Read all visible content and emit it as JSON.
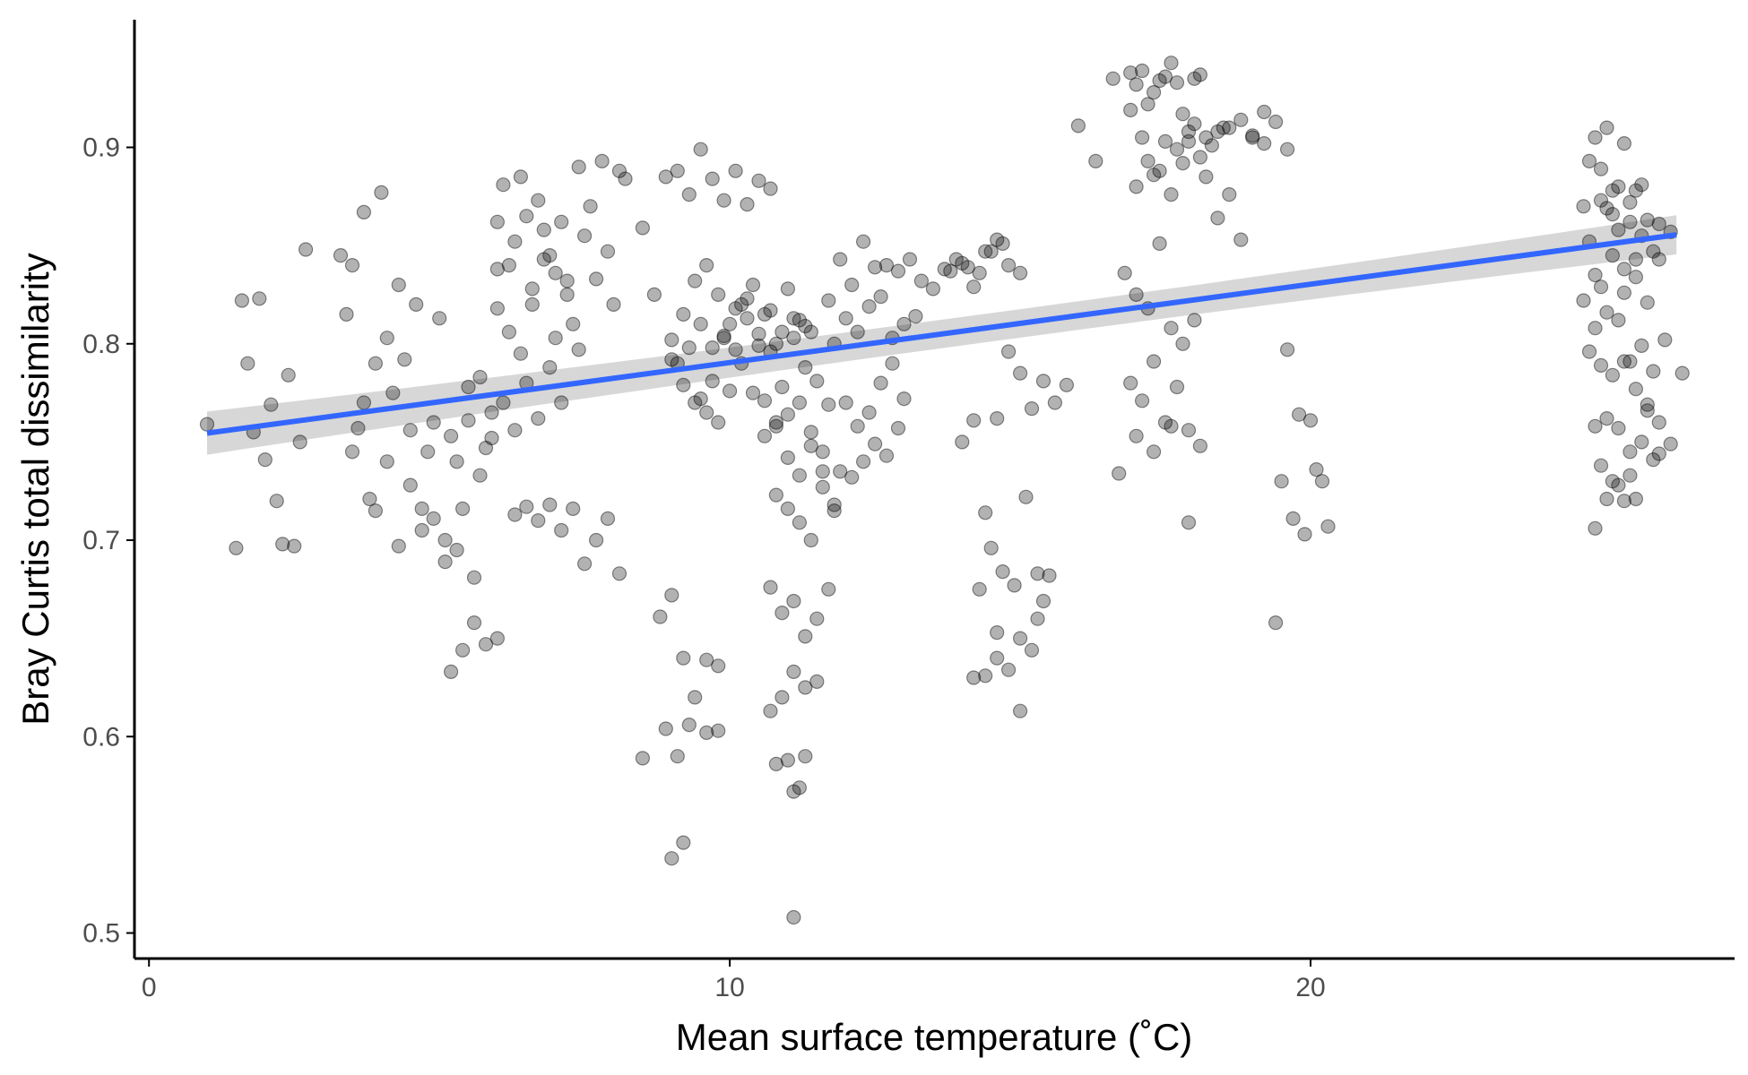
{
  "colors": {
    "points": "#000000",
    "fit_line": "#3366FF",
    "band": "#bdbdbd",
    "axis": "#000000",
    "tick_label": "#4d4d4d"
  },
  "chart_data": {
    "type": "scatter",
    "xlabel": "Mean surface temperature (˚C)",
    "ylabel": "Bray Curtis total dissimilarity",
    "xlim": [
      -0.25,
      27.3
    ],
    "ylim": [
      0.487,
      0.965
    ],
    "x_ticks": [
      0,
      10,
      20
    ],
    "x_tick_labels": [
      "0",
      "10",
      "20"
    ],
    "y_ticks": [
      0.5,
      0.6,
      0.7,
      0.8,
      0.9
    ],
    "y_tick_labels": [
      "0.5",
      "0.6",
      "0.7",
      "0.8",
      "0.9"
    ],
    "grid": false,
    "legend": "none",
    "points": {
      "x": [
        1.0,
        1.5,
        1.6,
        1.7,
        1.8,
        1.9,
        2.0,
        2.1,
        2.2,
        2.3,
        2.4,
        2.5,
        2.6,
        2.7,
        3.3,
        3.4,
        3.5,
        3.6,
        3.7,
        3.8,
        3.9,
        4.0,
        4.1,
        4.2,
        4.3,
        4.4,
        4.5,
        4.6,
        4.7,
        4.8,
        4.9,
        5.0,
        5.1,
        5.2,
        5.3,
        5.4,
        5.5,
        5.6,
        5.7,
        5.8,
        5.9,
        6.0,
        3.5,
        3.7,
        3.9,
        4.1,
        4.3,
        4.5,
        4.7,
        4.9,
        5.1,
        5.3,
        6.0,
        6.1,
        6.2,
        6.3,
        6.4,
        6.5,
        6.6,
        6.7,
        6.8,
        6.9,
        7.0,
        7.1,
        7.2,
        7.3,
        7.4,
        7.5,
        7.6,
        7.7,
        7.8,
        7.9,
        8.0,
        8.1,
        8.2,
        6.0,
        6.2,
        6.4,
        6.6,
        6.8,
        7.0,
        7.2,
        7.4,
        6.3,
        6.5,
        6.7,
        6.9,
        7.1,
        7.3,
        7.5,
        7.7,
        7.9,
        8.1,
        5.5,
        5.7,
        5.9,
        6.1,
        6.3,
        6.5,
        6.7,
        6.9,
        7.1,
        5.2,
        5.4,
        5.6,
        5.8,
        6.0,
        8.5,
        8.7,
        8.9,
        9.1,
        9.3,
        9.5,
        9.7,
        9.9,
        10.1,
        10.3,
        10.5,
        10.7,
        9.0,
        9.2,
        9.4,
        9.6,
        9.8,
        10.0,
        10.2,
        10.4,
        10.6,
        10.8,
        11.0,
        11.2,
        11.4,
        9.1,
        9.3,
        9.5,
        9.7,
        9.9,
        10.1,
        10.3,
        10.5,
        10.7,
        10.9,
        11.1,
        11.3,
        11.5,
        11.7,
        9.0,
        9.2,
        9.4,
        9.6,
        9.8,
        10.0,
        10.2,
        10.4,
        10.6,
        10.8,
        11.0,
        11.2,
        11.4,
        11.6,
        9.5,
        9.7,
        9.9,
        10.1,
        10.3,
        10.5,
        10.7,
        10.9,
        11.1,
        11.3,
        10.6,
        10.8,
        11.0,
        11.2,
        11.4,
        11.6,
        11.8,
        10.8,
        11.0,
        11.2,
        11.4,
        11.6,
        11.8,
        10.7,
        10.9,
        11.1,
        11.3,
        11.5,
        11.7,
        8.8,
        9.0,
        9.2,
        9.4,
        9.6,
        9.8,
        10.7,
        10.9,
        11.1,
        11.3,
        11.5,
        8.5,
        8.9,
        9.1,
        9.3,
        9.6,
        9.8,
        10.8,
        11.0,
        11.2,
        11.1,
        11.3,
        9.0,
        9.2,
        11.1,
        11.7,
        11.9,
        12.1,
        12.3,
        12.5,
        12.7,
        12.9,
        13.1,
        13.3,
        13.5,
        13.7,
        13.9,
        14.1,
        14.3,
        14.5,
        14.7,
        11.8,
        12.0,
        12.2,
        12.4,
        12.6,
        12.8,
        13.0,
        13.2,
        12.0,
        12.2,
        12.4,
        12.6,
        12.8,
        13.0,
        11.9,
        12.1,
        12.3,
        12.5,
        12.7,
        12.9,
        13.8,
        14.0,
        14.2,
        14.4,
        14.6,
        14.8,
        15.0,
        14.0,
        14.2,
        14.4,
        14.6,
        14.8,
        15.0,
        15.2,
        15.4,
        15.6,
        15.8,
        14.3,
        14.5,
        14.7,
        14.9,
        15.1,
        15.3,
        15.5,
        14.4,
        14.6,
        14.8,
        15.0,
        15.2,
        15.4,
        14.2,
        14.6,
        15.0,
        15.3,
        16.0,
        16.3,
        16.6,
        16.9,
        17.0,
        17.1,
        17.2,
        17.3,
        17.4,
        17.5,
        17.6,
        17.7,
        17.8,
        17.9,
        18.0,
        18.1,
        16.9,
        17.1,
        17.3,
        17.5,
        17.7,
        17.9,
        18.1,
        18.3,
        18.5,
        17.0,
        17.2,
        17.4,
        17.6,
        17.8,
        18.0,
        18.2,
        18.4,
        18.6,
        18.8,
        19.0,
        19.2,
        19.4,
        19.6,
        18.2,
        18.4,
        18.6,
        18.8,
        19.0,
        19.2,
        16.8,
        17.0,
        17.2,
        17.4,
        17.6,
        17.8,
        18.0,
        16.9,
        17.1,
        17.3,
        17.5,
        17.7,
        17.9,
        18.1,
        16.7,
        17.0,
        17.3,
        17.6,
        17.9,
        19.5,
        19.7,
        19.9,
        20.1,
        20.3,
        19.6,
        19.8,
        20.0,
        20.2,
        19.4,
        24.7,
        24.8,
        24.9,
        25.0,
        25.1,
        25.2,
        25.3,
        25.4,
        25.5,
        25.6,
        25.7,
        25.8,
        25.9,
        26.0,
        24.8,
        24.9,
        25.0,
        25.1,
        25.2,
        25.3,
        25.4,
        25.5,
        25.6,
        25.7,
        24.7,
        24.9,
        25.1,
        25.3,
        25.5,
        25.7,
        25.9,
        26.1,
        24.8,
        25.0,
        25.2,
        25.4,
        25.6,
        25.8,
        26.0,
        26.2,
        26.4,
        24.9,
        25.1,
        25.3,
        25.5,
        25.7,
        25.9,
        25.0,
        25.2,
        25.4,
        25.6,
        25.8,
        26.0,
        24.9,
        25.1,
        25.3,
        25.5,
        25.0,
        25.2,
        25.4,
        25.6,
        25.8,
        26.0,
        26.2
      ],
      "y": [
        0.759,
        0.696,
        0.822,
        0.79,
        0.755,
        0.823,
        0.741,
        0.769,
        0.72,
        0.698,
        0.784,
        0.697,
        0.75,
        0.848,
        0.845,
        0.815,
        0.84,
        0.757,
        0.867,
        0.721,
        0.79,
        0.877,
        0.803,
        0.775,
        0.83,
        0.792,
        0.756,
        0.82,
        0.716,
        0.745,
        0.76,
        0.813,
        0.689,
        0.753,
        0.74,
        0.716,
        0.761,
        0.681,
        0.733,
        0.747,
        0.765,
        0.862,
        0.745,
        0.77,
        0.715,
        0.74,
        0.697,
        0.728,
        0.705,
        0.711,
        0.7,
        0.695,
        0.838,
        0.881,
        0.84,
        0.852,
        0.885,
        0.865,
        0.82,
        0.873,
        0.858,
        0.845,
        0.836,
        0.862,
        0.825,
        0.81,
        0.89,
        0.855,
        0.87,
        0.833,
        0.893,
        0.847,
        0.82,
        0.888,
        0.884,
        0.818,
        0.806,
        0.795,
        0.828,
        0.843,
        0.803,
        0.832,
        0.797,
        0.713,
        0.717,
        0.71,
        0.718,
        0.705,
        0.716,
        0.688,
        0.7,
        0.711,
        0.683,
        0.778,
        0.783,
        0.752,
        0.77,
        0.756,
        0.78,
        0.762,
        0.788,
        0.77,
        0.633,
        0.644,
        0.658,
        0.647,
        0.65,
        0.859,
        0.825,
        0.885,
        0.888,
        0.876,
        0.899,
        0.884,
        0.873,
        0.888,
        0.871,
        0.883,
        0.879,
        0.802,
        0.815,
        0.832,
        0.84,
        0.825,
        0.81,
        0.82,
        0.83,
        0.815,
        0.8,
        0.828,
        0.812,
        0.806,
        0.79,
        0.798,
        0.772,
        0.781,
        0.804,
        0.797,
        0.813,
        0.799,
        0.796,
        0.778,
        0.803,
        0.788,
        0.781,
        0.769,
        0.792,
        0.779,
        0.77,
        0.765,
        0.76,
        0.776,
        0.79,
        0.775,
        0.771,
        0.758,
        0.764,
        0.77,
        0.755,
        0.745,
        0.81,
        0.798,
        0.803,
        0.818,
        0.823,
        0.805,
        0.817,
        0.806,
        0.813,
        0.809,
        0.753,
        0.76,
        0.742,
        0.733,
        0.748,
        0.735,
        0.715,
        0.723,
        0.716,
        0.709,
        0.7,
        0.727,
        0.718,
        0.676,
        0.663,
        0.669,
        0.651,
        0.66,
        0.675,
        0.661,
        0.672,
        0.64,
        0.62,
        0.639,
        0.636,
        0.613,
        0.62,
        0.633,
        0.625,
        0.628,
        0.589,
        0.604,
        0.59,
        0.606,
        0.602,
        0.603,
        0.586,
        0.588,
        0.574,
        0.572,
        0.59,
        0.538,
        0.546,
        0.508,
        0.822,
        0.843,
        0.83,
        0.852,
        0.839,
        0.84,
        0.837,
        0.843,
        0.832,
        0.828,
        0.838,
        0.843,
        0.839,
        0.836,
        0.847,
        0.851,
        0.8,
        0.813,
        0.806,
        0.819,
        0.824,
        0.803,
        0.81,
        0.814,
        0.77,
        0.758,
        0.765,
        0.78,
        0.79,
        0.772,
        0.735,
        0.732,
        0.74,
        0.749,
        0.743,
        0.757,
        0.837,
        0.841,
        0.829,
        0.847,
        0.853,
        0.84,
        0.836,
        0.75,
        0.761,
        0.714,
        0.762,
        0.796,
        0.785,
        0.767,
        0.781,
        0.77,
        0.779,
        0.675,
        0.696,
        0.684,
        0.677,
        0.722,
        0.683,
        0.682,
        0.631,
        0.653,
        0.634,
        0.613,
        0.644,
        0.669,
        0.63,
        0.64,
        0.65,
        0.66,
        0.911,
        0.893,
        0.935,
        0.938,
        0.932,
        0.939,
        0.922,
        0.928,
        0.934,
        0.936,
        0.943,
        0.933,
        0.917,
        0.903,
        0.935,
        0.937,
        0.919,
        0.905,
        0.886,
        0.903,
        0.899,
        0.908,
        0.895,
        0.901,
        0.91,
        0.88,
        0.893,
        0.888,
        0.876,
        0.892,
        0.912,
        0.905,
        0.908,
        0.91,
        0.914,
        0.905,
        0.902,
        0.913,
        0.899,
        0.885,
        0.864,
        0.876,
        0.853,
        0.906,
        0.918,
        0.836,
        0.825,
        0.818,
        0.851,
        0.808,
        0.8,
        0.812,
        0.78,
        0.771,
        0.791,
        0.76,
        0.778,
        0.756,
        0.748,
        0.734,
        0.753,
        0.745,
        0.758,
        0.709,
        0.73,
        0.711,
        0.703,
        0.736,
        0.707,
        0.797,
        0.764,
        0.761,
        0.73,
        0.658,
        0.87,
        0.893,
        0.905,
        0.889,
        0.91,
        0.866,
        0.88,
        0.902,
        0.872,
        0.878,
        0.855,
        0.863,
        0.847,
        0.861,
        0.852,
        0.835,
        0.873,
        0.869,
        0.878,
        0.858,
        0.826,
        0.862,
        0.843,
        0.881,
        0.822,
        0.808,
        0.816,
        0.812,
        0.791,
        0.799,
        0.786,
        0.802,
        0.796,
        0.789,
        0.784,
        0.791,
        0.777,
        0.769,
        0.76,
        0.749,
        0.785,
        0.758,
        0.762,
        0.757,
        0.745,
        0.75,
        0.741,
        0.738,
        0.73,
        0.72,
        0.721,
        0.766,
        0.744,
        0.706,
        0.721,
        0.728,
        0.733,
        0.829,
        0.845,
        0.838,
        0.834,
        0.821,
        0.843,
        0.857
      ]
    },
    "fit": {
      "x": [
        1.0,
        26.3
      ],
      "y": [
        0.7545,
        0.8555
      ],
      "ci_halfwidth_start": 0.011,
      "ci_halfwidth_mid": 0.004,
      "ci_halfwidth_end": 0.01
    }
  }
}
